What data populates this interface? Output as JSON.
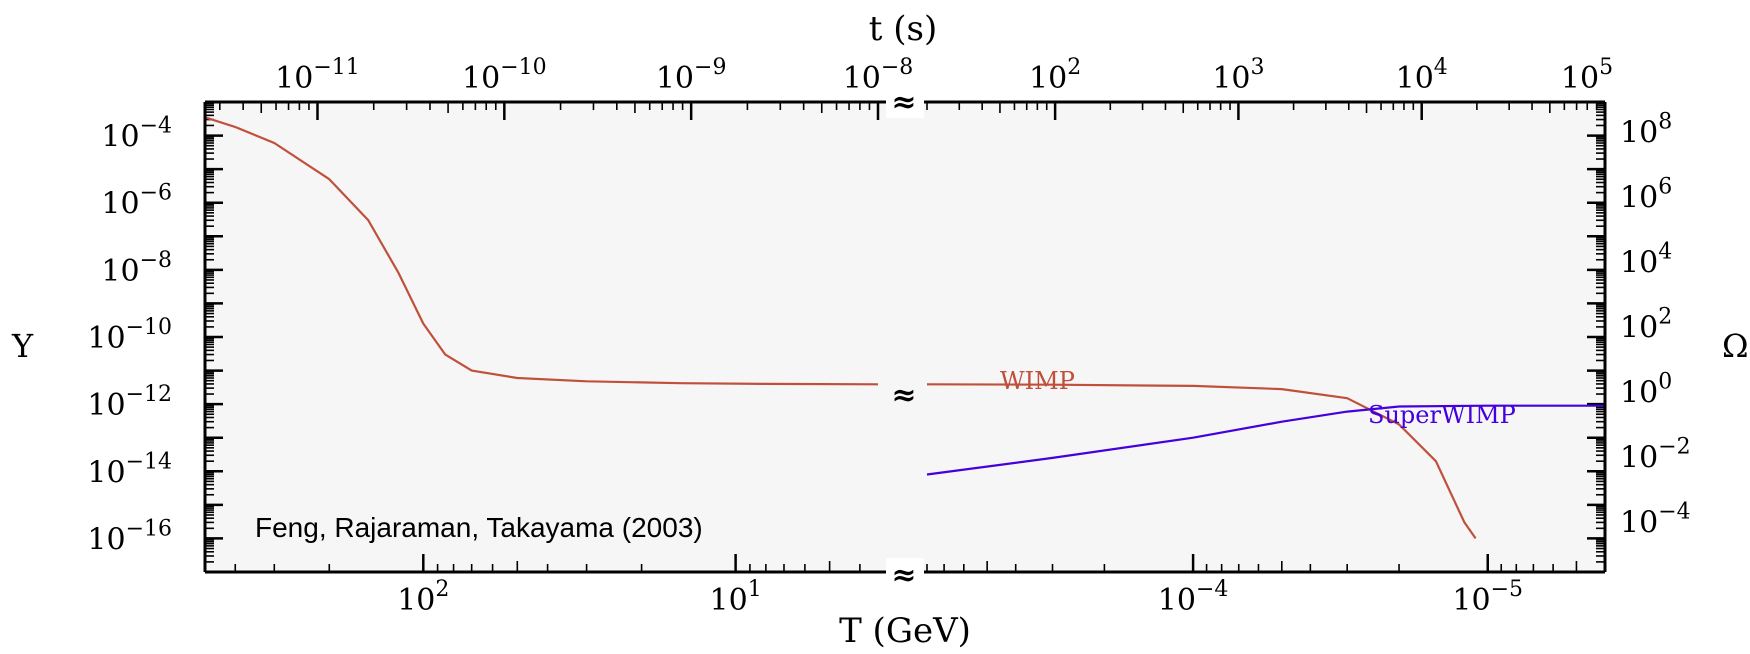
{
  "chart_data": {
    "type": "line",
    "title": "",
    "xlabel_bottom": "T (GeV)",
    "xlabel_top": "t (s)",
    "ylabel_left": "Y",
    "ylabel_right": "Ω",
    "annotation": "Feng, Rajaraman, Takayama (2003)",
    "axis_break_symbol": "≈",
    "scale": "log",
    "left_panel": {
      "T_range_GeV": [
        500,
        3.5
      ],
      "t_range_s": [
        2.5e-12,
        1e-08
      ],
      "bottom_ticks": [
        {
          "label_base": "10",
          "label_exp": "2",
          "value": 100
        },
        {
          "label_base": "10",
          "label_exp": "1",
          "value": 10
        }
      ],
      "top_ticks": [
        {
          "label_base": "10",
          "label_exp": "−11",
          "value": 1e-11
        },
        {
          "label_base": "10",
          "label_exp": "−10",
          "value": 1e-10
        },
        {
          "label_base": "10",
          "label_exp": "−9",
          "value": 1e-09
        },
        {
          "label_base": "10",
          "label_exp": "−8",
          "value": 1e-08
        }
      ]
    },
    "right_panel": {
      "T_range_GeV": [
        0.0008,
        4e-06
      ],
      "t_range_s": [
        20,
        100000
      ],
      "bottom_ticks": [
        {
          "label_base": "10",
          "label_exp": "−4",
          "value": 0.0001
        },
        {
          "label_base": "10",
          "label_exp": "−5",
          "value": 1e-05
        }
      ],
      "top_ticks": [
        {
          "label_base": "10",
          "label_exp": "2",
          "value": 100
        },
        {
          "label_base": "10",
          "label_exp": "3",
          "value": 1000
        },
        {
          "label_base": "10",
          "label_exp": "4",
          "value": 10000
        },
        {
          "label_base": "10",
          "label_exp": "5",
          "value": 100000
        }
      ]
    },
    "y_left": {
      "range": [
        1e-17,
        0.001
      ],
      "ticks": [
        {
          "label_base": "10",
          "label_exp": "−4",
          "value": 0.0001
        },
        {
          "label_base": "10",
          "label_exp": "−6",
          "value": 1e-06
        },
        {
          "label_base": "10",
          "label_exp": "−8",
          "value": 1e-08
        },
        {
          "label_base": "10",
          "label_exp": "−10",
          "value": 1e-10
        },
        {
          "label_base": "10",
          "label_exp": "−12",
          "value": 1e-12
        },
        {
          "label_base": "10",
          "label_exp": "−14",
          "value": 1e-14
        },
        {
          "label_base": "10",
          "label_exp": "−16",
          "value": 1e-16
        }
      ]
    },
    "y_right": {
      "ticks": [
        {
          "label_base": "10",
          "label_exp": "8",
          "value": 100000000.0
        },
        {
          "label_base": "10",
          "label_exp": "6",
          "value": 1000000.0
        },
        {
          "label_base": "10",
          "label_exp": "4",
          "value": 10000.0
        },
        {
          "label_base": "10",
          "label_exp": "2",
          "value": 100.0
        },
        {
          "label_base": "10",
          "label_exp": "0",
          "value": 1
        },
        {
          "label_base": "10",
          "label_exp": "−2",
          "value": 0.01
        },
        {
          "label_base": "10",
          "label_exp": "−4",
          "value": 0.0001
        }
      ]
    },
    "series": [
      {
        "name": "WIMP",
        "color": "#c0503c",
        "left_points": [
          [
            500,
            0.00035
          ],
          [
            400,
            0.00018
          ],
          [
            300,
            6e-05
          ],
          [
            200,
            5e-06
          ],
          [
            150,
            3e-07
          ],
          [
            120,
            8e-09
          ],
          [
            100,
            2.5e-10
          ],
          [
            85,
            3e-11
          ],
          [
            70,
            1e-11
          ],
          [
            50,
            6e-12
          ],
          [
            30,
            4.8e-12
          ],
          [
            15,
            4.2e-12
          ],
          [
            8,
            4e-12
          ],
          [
            3.5,
            3.9e-12
          ]
        ],
        "right_points": [
          [
            0.0008,
            3.9e-12
          ],
          [
            0.0003,
            3.8e-12
          ],
          [
            0.0001,
            3.5e-12
          ],
          [
            5e-05,
            2.8e-12
          ],
          [
            3e-05,
            1.5e-12
          ],
          [
            2e-05,
            2.5e-13
          ],
          [
            1.5e-05,
            2e-14
          ],
          [
            1.2e-05,
            3e-16
          ],
          [
            1.1e-05,
            1e-16
          ]
        ]
      },
      {
        "name": "SuperWIMP",
        "color": "#4400dd",
        "left_points": [],
        "right_points": [
          [
            0.0008,
            8e-15
          ],
          [
            0.0003,
            2.5e-14
          ],
          [
            0.0001,
            1e-13
          ],
          [
            5e-05,
            3e-13
          ],
          [
            3e-05,
            6e-13
          ],
          [
            2e-05,
            8.5e-13
          ],
          [
            1e-05,
            9e-13
          ],
          [
            4e-06,
            9e-13
          ]
        ]
      }
    ]
  }
}
